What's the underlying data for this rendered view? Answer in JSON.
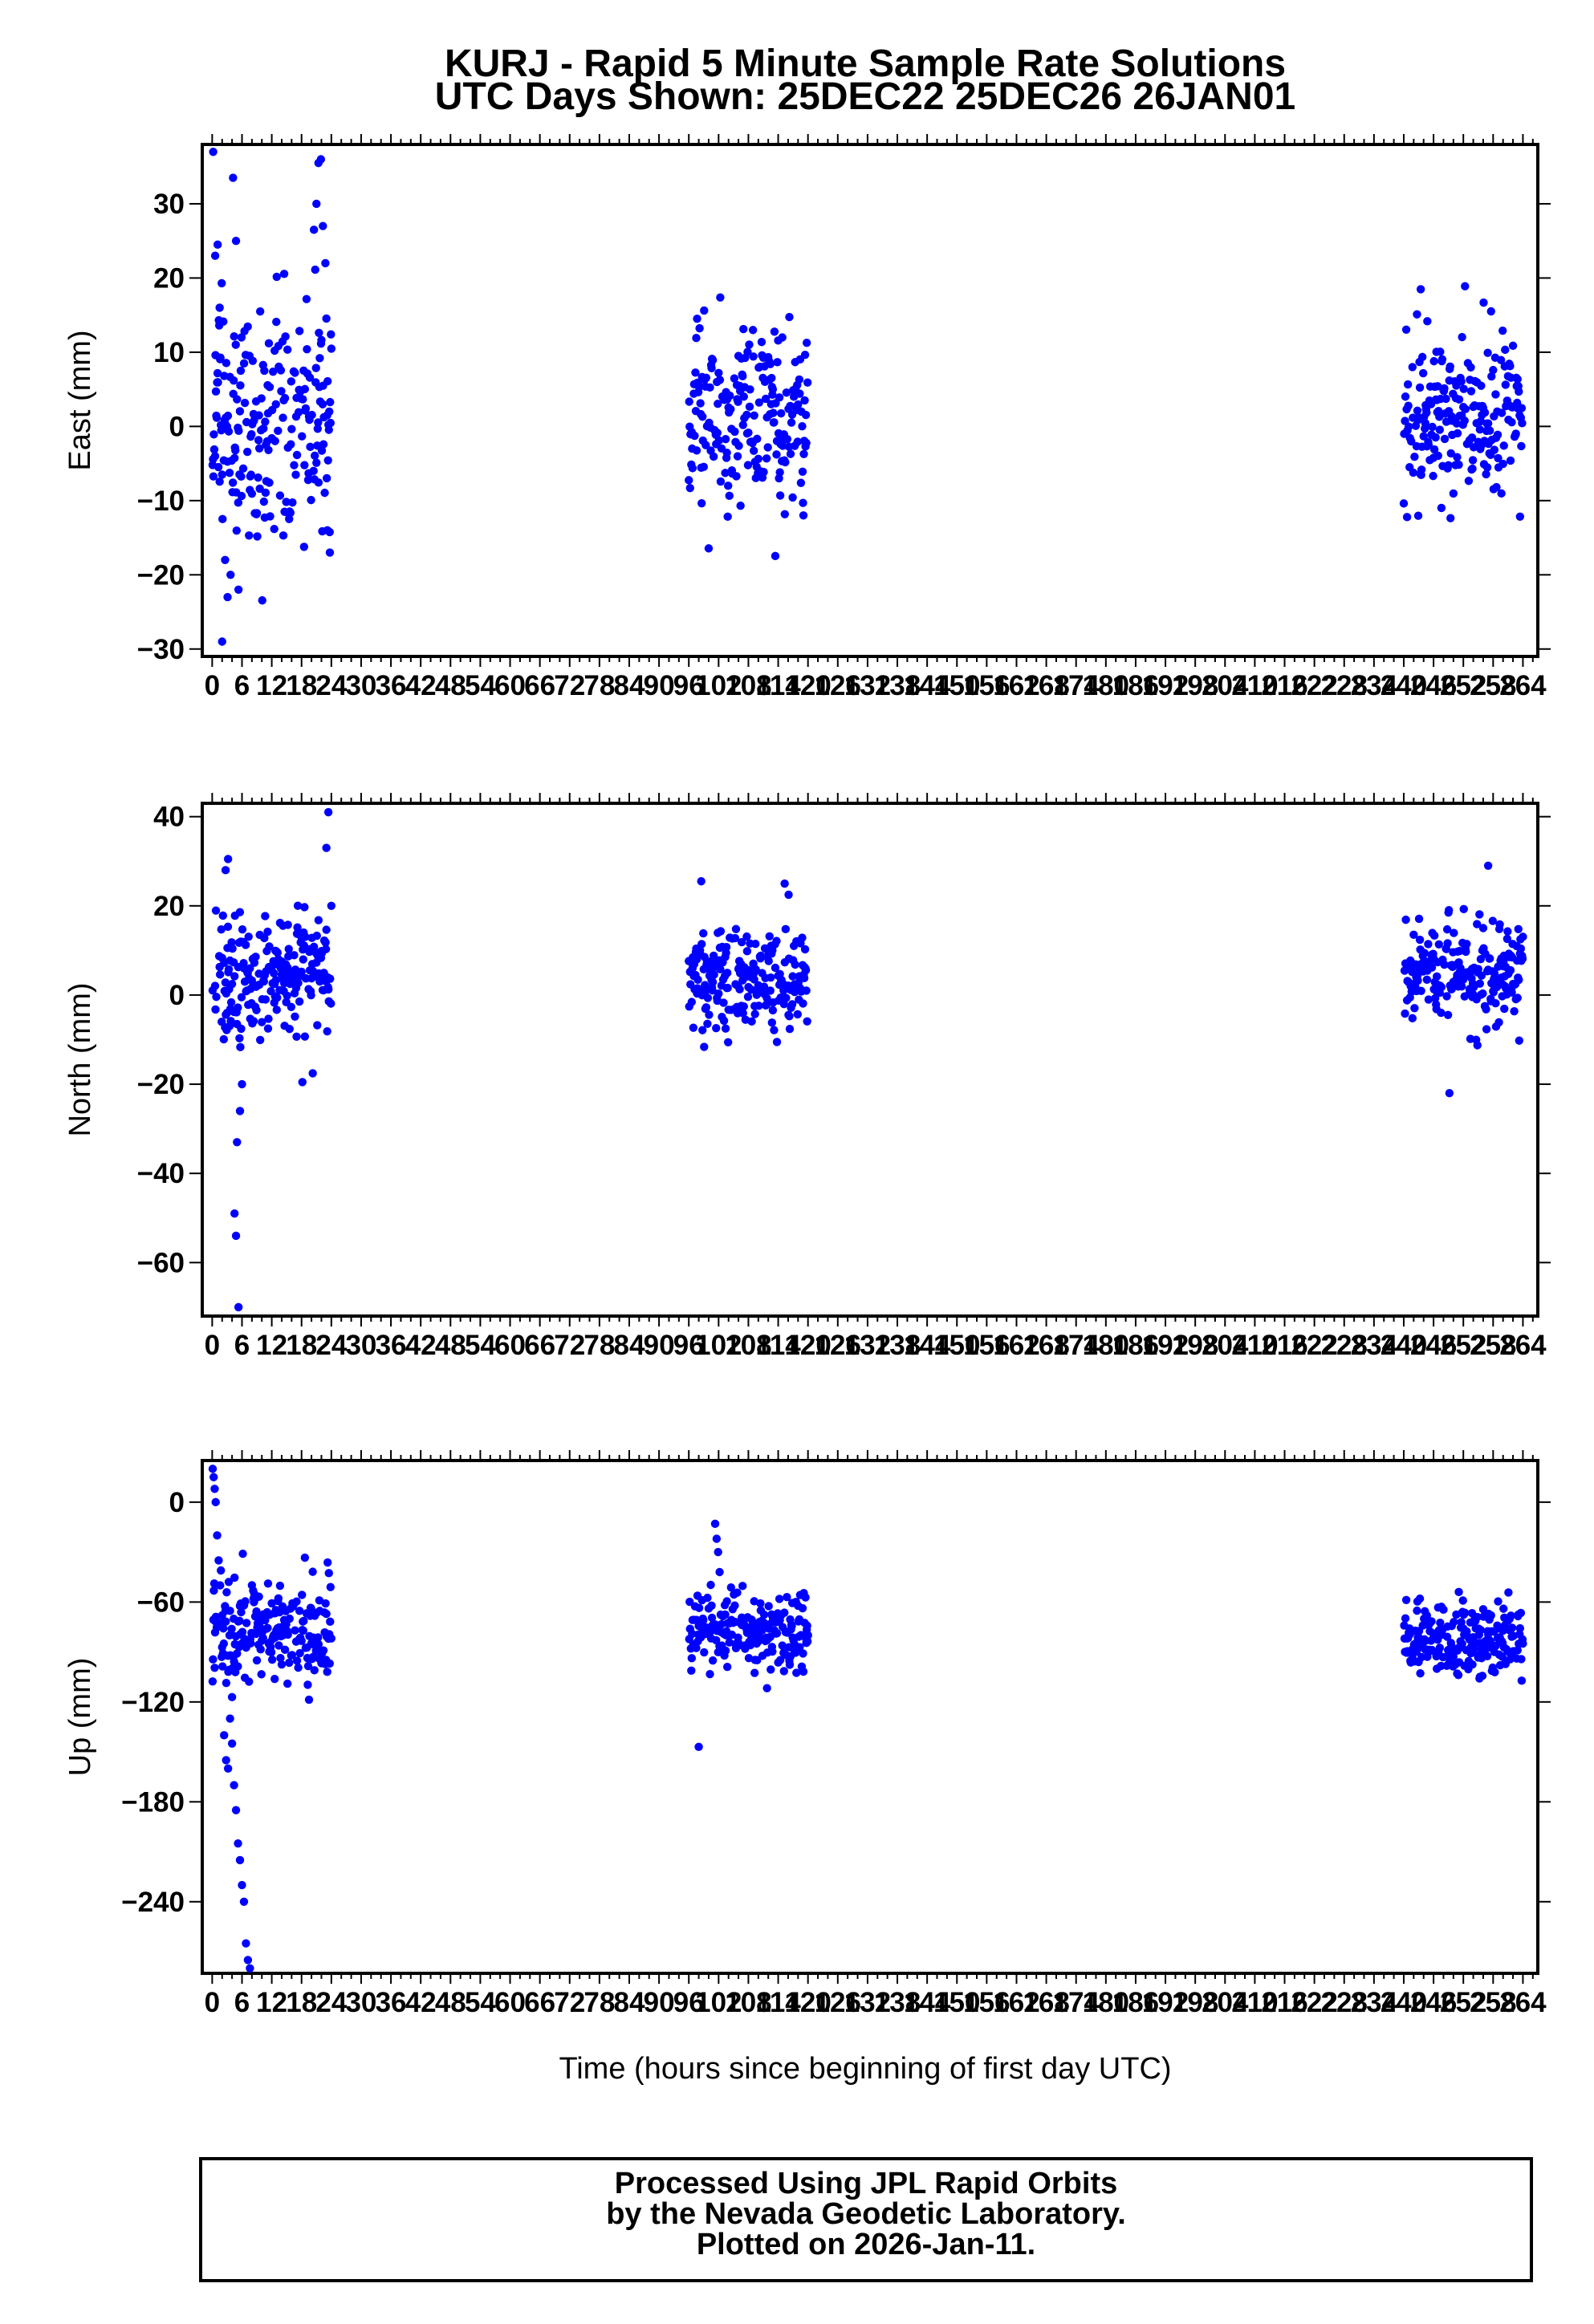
{
  "title_line1": "KURJ - Rapid 5 Minute Sample Rate Solutions",
  "title_line2": "UTC Days Shown:  25DEC22 25DEC26 26JAN01",
  "xlabel": "Time (hours since beginning of first day UTC)",
  "footer": {
    "line1": "Processed Using JPL Rapid Orbits",
    "line2": "by the Nevada Geodetic Laboratory.",
    "line3": "Plotted on 2026-Jan-11."
  },
  "colors": {
    "points": "#0000ff",
    "frame": "#000000"
  },
  "chart_data": [
    {
      "type": "scatter",
      "ylabel": "East (mm)",
      "xlim": [
        -2,
        267
      ],
      "ylim": [
        -31,
        38
      ],
      "x_ticks": [
        0,
        6,
        12,
        18,
        24,
        30,
        36,
        42,
        48,
        54,
        60,
        66,
        72,
        78,
        84,
        90,
        96,
        102,
        108,
        114,
        120,
        126,
        132,
        138,
        144,
        150,
        156,
        162,
        168,
        174,
        180,
        186,
        192,
        198,
        204,
        210,
        216,
        222,
        228,
        234,
        240,
        246,
        252,
        258,
        264
      ],
      "y_ticks": [
        -30,
        -20,
        -10,
        0,
        10,
        20,
        30
      ],
      "grid": false,
      "segments": [
        {
          "x_range": [
            0,
            24
          ],
          "mean": 1,
          "sd": 8
        },
        {
          "x_range": [
            96,
            120
          ],
          "mean": 1,
          "sd": 6
        },
        {
          "x_range": [
            240,
            264
          ],
          "mean": 1,
          "sd": 6
        }
      ],
      "series": [
        {
          "x": [
            0.2,
            0.6,
            1.1,
            1.5,
            2.0,
            2.6,
            3.1,
            3.7,
            4.2,
            4.8,
            5.3,
            5.9,
            20.5,
            21.0,
            21.4,
            21.9,
            22.3,
            22.8,
            23.2,
            23.7
          ],
          "y": [
            37,
            23,
            24.5,
            16,
            -29,
            -18,
            -23,
            -20,
            33.5,
            25,
            -22,
            12,
            26.5,
            30,
            35.5,
            36,
            27,
            22,
            -14,
            -17
          ]
        }
      ]
    },
    {
      "type": "scatter",
      "ylabel": "North (mm)",
      "xlim": [
        -2,
        267
      ],
      "ylim": [
        -72,
        43
      ],
      "x_ticks": [
        0,
        6,
        12,
        18,
        24,
        30,
        36,
        42,
        48,
        54,
        60,
        66,
        72,
        78,
        84,
        90,
        96,
        102,
        108,
        114,
        120,
        126,
        132,
        138,
        144,
        150,
        156,
        162,
        168,
        174,
        180,
        186,
        192,
        198,
        204,
        210,
        216,
        222,
        228,
        234,
        240,
        246,
        252,
        258,
        264
      ],
      "y_ticks": [
        -60,
        -40,
        -20,
        0,
        20,
        40
      ],
      "grid": false,
      "segments": [
        {
          "x_range": [
            0,
            24
          ],
          "mean": 4,
          "sd": 7
        },
        {
          "x_range": [
            96,
            120
          ],
          "mean": 3,
          "sd": 6
        },
        {
          "x_range": [
            240,
            264
          ],
          "mean": 5,
          "sd": 6
        }
      ],
      "series": [
        {
          "x": [
            4.5,
            4.8,
            5.0,
            5.3,
            5.6,
            6.0,
            3.2,
            2.7,
            23.4,
            23.0,
            24.0,
            98.5,
            115.3,
            116.1,
            257.0,
            249.2
          ],
          "y": [
            -49,
            -54,
            -33,
            -70,
            -26,
            -20,
            30.5,
            28,
            41,
            33,
            20,
            25.5,
            25,
            22.5,
            29,
            -22
          ]
        }
      ]
    },
    {
      "type": "scatter",
      "ylabel": "Up (mm)",
      "xlim": [
        -2,
        267
      ],
      "ylim": [
        -283,
        25
      ],
      "x_ticks": [
        0,
        6,
        12,
        18,
        24,
        30,
        36,
        42,
        48,
        54,
        60,
        66,
        72,
        78,
        84,
        90,
        96,
        102,
        108,
        114,
        120,
        126,
        132,
        138,
        144,
        150,
        156,
        162,
        168,
        174,
        180,
        186,
        192,
        198,
        204,
        210,
        216,
        222,
        228,
        234,
        240,
        246,
        252,
        258,
        264
      ],
      "y_ticks": [
        -240,
        -180,
        -120,
        -60,
        0
      ],
      "grid": false,
      "segments": [
        {
          "x_range": [
            0,
            24
          ],
          "mean": -78,
          "sd": 14
        },
        {
          "x_range": [
            96,
            120
          ],
          "mean": -77,
          "sd": 11
        },
        {
          "x_range": [
            240,
            264
          ],
          "mean": -82,
          "sd": 12
        }
      ],
      "series": [
        {
          "x": [
            0.1,
            0.3,
            0.5,
            0.7,
            1.0,
            1.3,
            1.6,
            2.0,
            2.4,
            2.8,
            3.2,
            3.6,
            4.0,
            4.4,
            4.8,
            5.2,
            5.6,
            6.0,
            6.4,
            6.8,
            7.2,
            7.6,
            98.0,
            101.3,
            101.6,
            101.9,
            102.2
          ],
          "y": [
            20,
            15,
            8,
            0,
            -20,
            -35,
            -50,
            -68,
            -140,
            -155,
            -160,
            -130,
            -145,
            -170,
            -185,
            -205,
            -215,
            -230,
            -240,
            -265,
            -275,
            -280,
            -147,
            -13,
            -22,
            -30,
            -42
          ]
        }
      ]
    }
  ]
}
